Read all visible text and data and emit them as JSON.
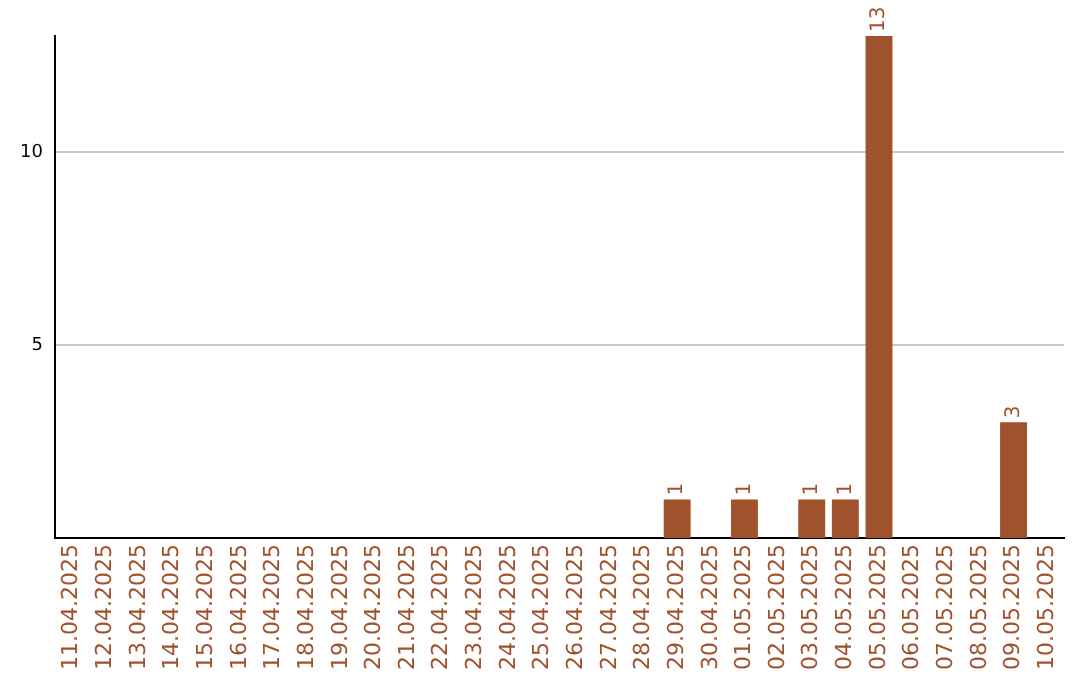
{
  "chart_data": {
    "type": "bar",
    "categories": [
      "11.04.2025",
      "12.04.2025",
      "13.04.2025",
      "14.04.2025",
      "15.04.2025",
      "16.04.2025",
      "17.04.2025",
      "18.04.2025",
      "19.04.2025",
      "20.04.2025",
      "21.04.2025",
      "22.04.2025",
      "23.04.2025",
      "24.04.2025",
      "25.04.2025",
      "26.04.2025",
      "27.04.2025",
      "28.04.2025",
      "29.04.2025",
      "30.04.2025",
      "01.05.2025",
      "02.05.2025",
      "03.05.2025",
      "04.05.2025",
      "05.05.2025",
      "06.05.2025",
      "07.05.2025",
      "08.05.2025",
      "09.05.2025",
      "10.05.2025"
    ],
    "values": [
      0,
      0,
      0,
      0,
      0,
      0,
      0,
      0,
      0,
      0,
      0,
      0,
      0,
      0,
      0,
      0,
      0,
      0,
      1,
      0,
      1,
      0,
      1,
      1,
      13,
      0,
      0,
      0,
      3,
      0
    ],
    "value_labels": [
      null,
      null,
      null,
      null,
      null,
      null,
      null,
      null,
      null,
      null,
      null,
      null,
      null,
      null,
      null,
      null,
      null,
      null,
      "1",
      null,
      "1",
      null,
      "1",
      "1",
      "13",
      null,
      null,
      null,
      "3",
      null
    ],
    "color": "#a0522d",
    "ylim": [
      0,
      13
    ],
    "yticks": [
      5,
      10
    ],
    "grid": "y",
    "legend": false
  }
}
